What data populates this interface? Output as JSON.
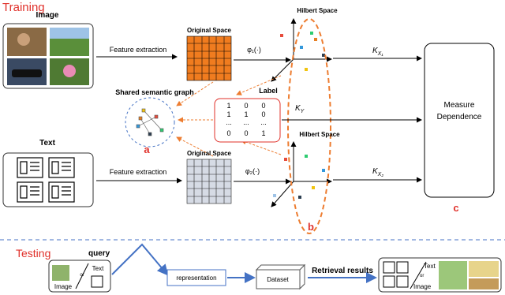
{
  "training": {
    "title": "Training",
    "image_label": "Image",
    "text_label": "Text"
  },
  "top_branch": {
    "feature_extraction": "Feature extraction",
    "original_space": "Original Space",
    "mapping": "φ₁(·)",
    "hilbert_space": "Hilbert Space",
    "kernel": "K",
    "kernel_sub": "X₁"
  },
  "bottom_branch": {
    "feature_extraction": "Feature extraction",
    "original_space": "Original Space",
    "mapping": "φ₂(·)",
    "hilbert_space": "Hilbert Space",
    "kernel": "K",
    "kernel_sub": "X₂"
  },
  "graph": {
    "title": "Shared semantic graph",
    "marker": "a"
  },
  "label": {
    "title": "Label",
    "rows": [
      [
        "1",
        "0",
        "0"
      ],
      [
        "1",
        "1",
        "0"
      ],
      [
        "...",
        "...",
        "..."
      ],
      [
        "0",
        "0",
        "1"
      ]
    ],
    "kernel": "K",
    "kernel_sub": "Y"
  },
  "hilbert_marker": "b",
  "measure": {
    "lines": [
      "Measure",
      "Dependence"
    ],
    "marker": "c"
  },
  "testing": {
    "title": "Testing",
    "query": "query",
    "query_box": {
      "top": "Text",
      "or": "or",
      "bottom": "Image"
    },
    "representation": "representation",
    "dataset": "Dataset",
    "retrieval": "Retrieval results",
    "result_box": {
      "top": "Text",
      "or": "or",
      "bottom": "Image"
    }
  }
}
